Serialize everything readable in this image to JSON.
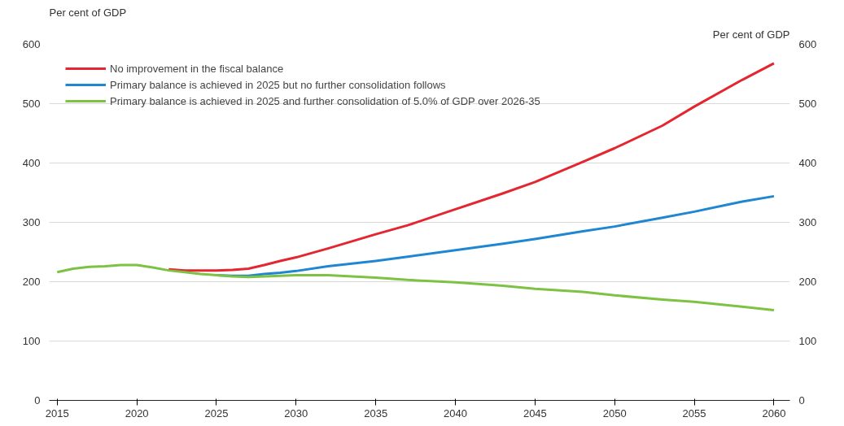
{
  "chart_data": {
    "type": "line",
    "ylabel": "Per cent of GDP",
    "y2label": "Per cent of GDP",
    "x": [
      2015,
      2016,
      2017,
      2018,
      2019,
      2020,
      2021,
      2022,
      2023,
      2024,
      2025,
      2026,
      2027,
      2028,
      2029,
      2030,
      2032,
      2035,
      2037,
      2040,
      2043,
      2045,
      2048,
      2050,
      2053,
      2055,
      2058,
      2060
    ],
    "series": [
      {
        "name": "No improvement in the fiscal balance",
        "color": "#e3262f",
        "values": [
          null,
          null,
          null,
          null,
          null,
          null,
          null,
          221,
          219,
          219,
          219,
          220,
          222,
          228,
          235,
          241,
          256,
          280,
          295,
          322,
          349,
          368,
          402,
          425,
          463,
          495,
          540,
          568
        ]
      },
      {
        "name": "Primary balance is achieved in 2025 but no further consolidation follows",
        "color": "#1f86d1",
        "values": [
          null,
          null,
          null,
          null,
          null,
          null,
          null,
          null,
          null,
          null,
          211,
          210,
          210,
          213,
          215,
          218,
          226,
          235,
          242,
          253,
          264,
          272,
          285,
          293,
          308,
          318,
          335,
          344
        ]
      },
      {
        "name": "Primary balance is achieved in 2025 and further consolidation of 5.0% of GDP over 2026-35",
        "color": "#7dc242",
        "values": [
          216,
          222,
          225,
          226,
          228,
          228,
          224,
          219,
          216,
          213,
          211,
          209,
          208,
          209,
          210,
          211,
          211,
          207,
          203,
          199,
          193,
          188,
          183,
          177,
          170,
          166,
          158,
          152
        ]
      }
    ],
    "xlim": [
      2014.5,
      2061
    ],
    "xticks": [
      2015,
      2020,
      2025,
      2030,
      2035,
      2040,
      2045,
      2050,
      2055,
      2060
    ],
    "ylim": [
      0,
      600
    ],
    "yticks": [
      0,
      100,
      200,
      300,
      400,
      500,
      600
    ],
    "y2lim": [
      0,
      600
    ],
    "y2ticks": [
      0,
      100,
      200,
      300,
      400,
      500,
      600
    ],
    "grid": "y",
    "legend": "top left",
    "marker": "none",
    "line_style": "solid"
  }
}
